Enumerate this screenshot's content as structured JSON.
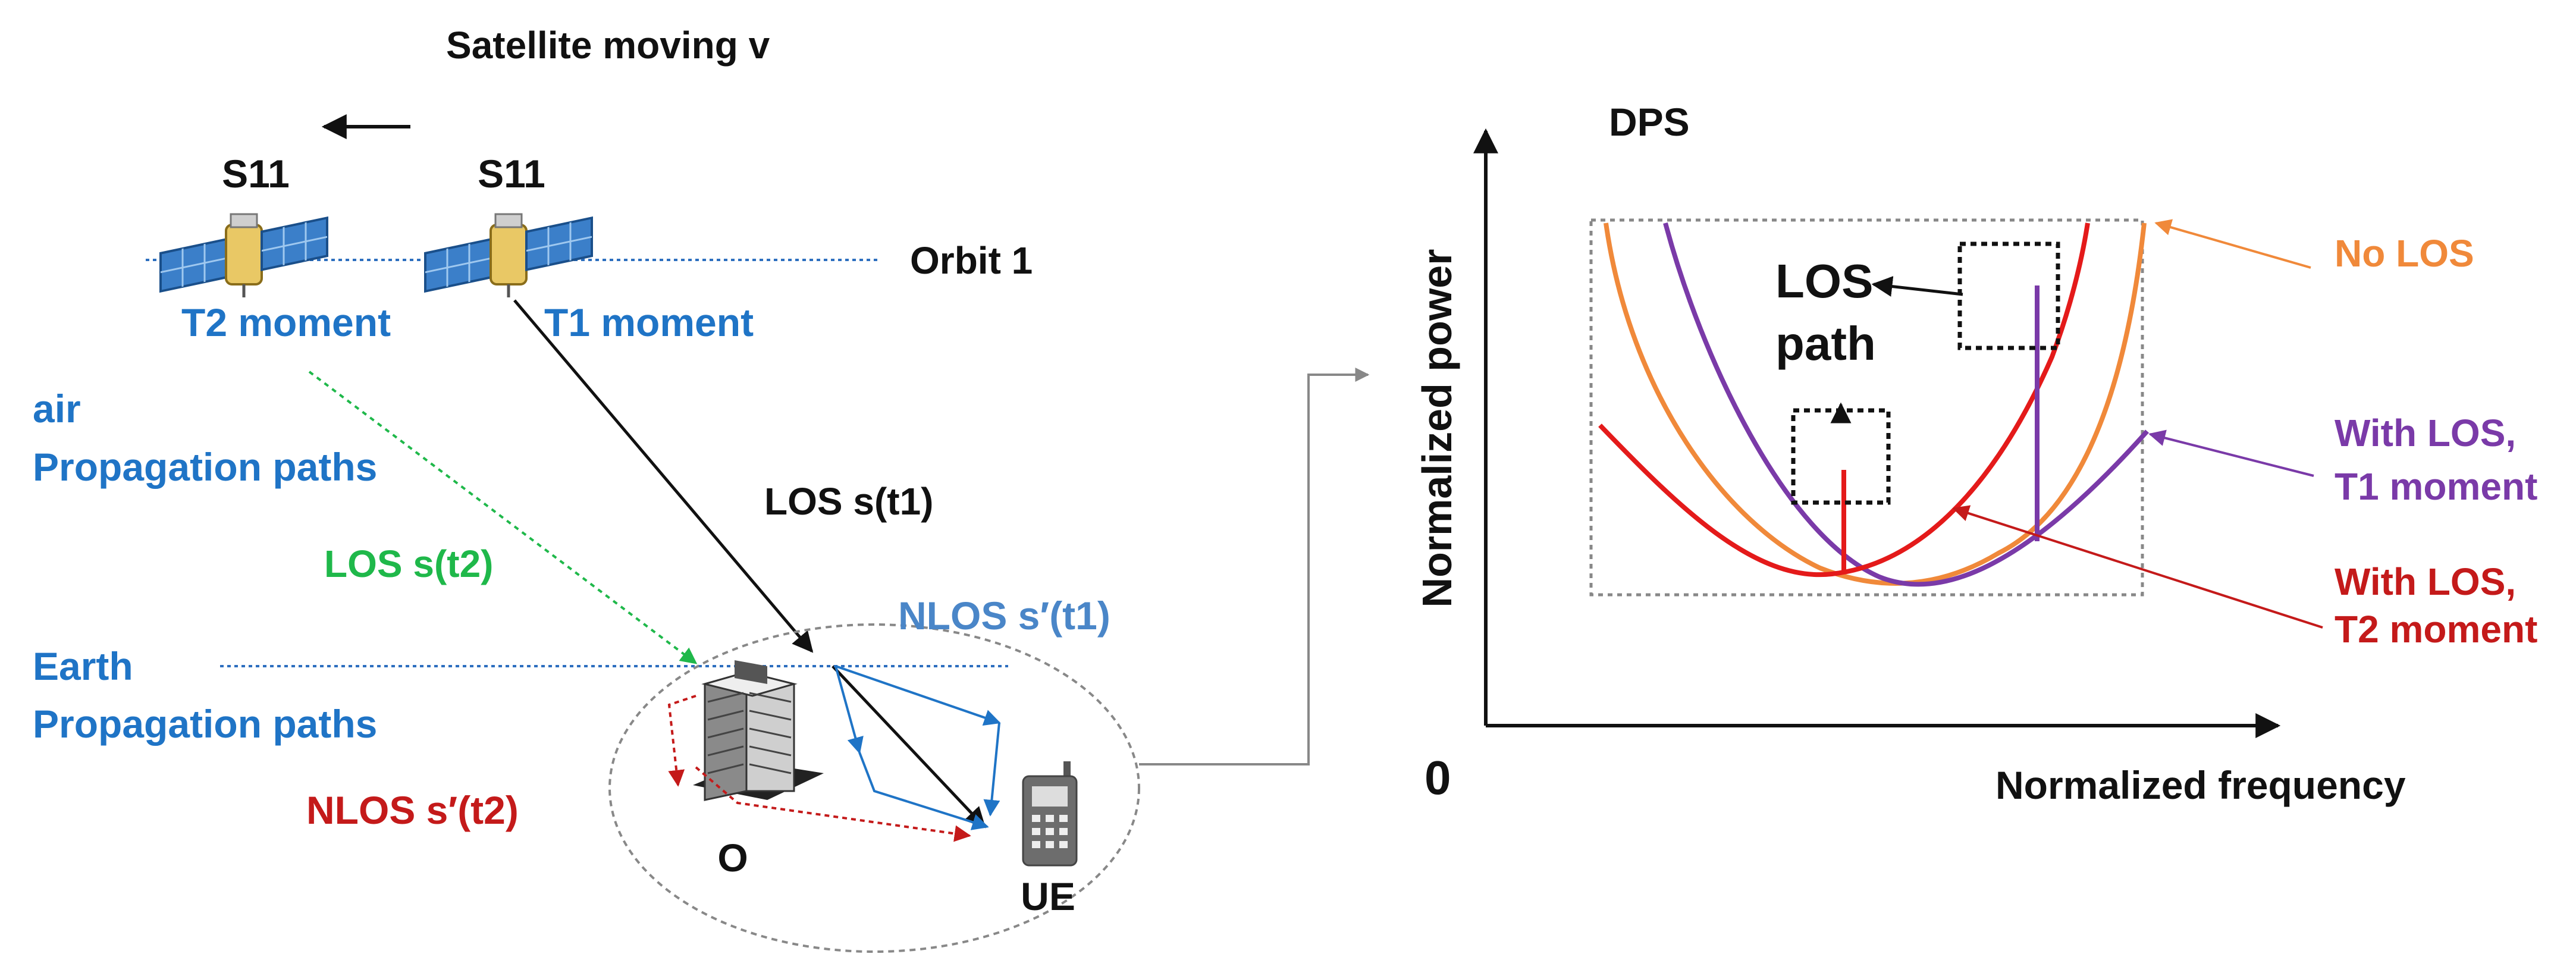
{
  "left_panel": {
    "satellite_moving_label": "Satellite moving v",
    "satellite_t2_name": "S11",
    "satellite_t1_name": "S11",
    "orbit_label": "Orbit 1",
    "t2_label": "T2 moment",
    "t1_label": "T1 moment",
    "air_paths_label_line1": "air",
    "air_paths_label_line2": "Propagation paths",
    "earth_paths_label_line1": "Earth",
    "earth_paths_label_line2": "Propagation paths",
    "los_t1_label": "LOS s(t1)",
    "los_t2_label": "LOS s(t2)",
    "nlos_t1_label": "NLOS s′(t1)",
    "nlos_t2_label": "NLOS s′(t2)",
    "building_label": "O",
    "ue_label": "UE"
  },
  "chart_data": {
    "type": "line",
    "title": "DPS",
    "xlabel": "Normalized frequency",
    "ylabel": "Normalized power",
    "origin_label": "0",
    "annotation": {
      "line1": "LOS",
      "line2": "path"
    },
    "series": [
      {
        "name": "No LOS",
        "color": "#f0893a"
      },
      {
        "name": "With LOS, T1 moment",
        "color": "#7a3aa8"
      },
      {
        "name": "With LOS, T2 moment",
        "color": "#c41a1a"
      }
    ],
    "legend": {
      "no_los": "No LOS",
      "t1_line1": "With LOS,",
      "t1_line2": "T1 moment",
      "t2_line1": "With LOS,",
      "t2_line2": "T2 moment"
    }
  },
  "colors": {
    "blue": "#1f74c6",
    "green": "#1fb84a",
    "red": "#c41a1a",
    "orange": "#f0893a",
    "purple": "#7a3aa8"
  }
}
